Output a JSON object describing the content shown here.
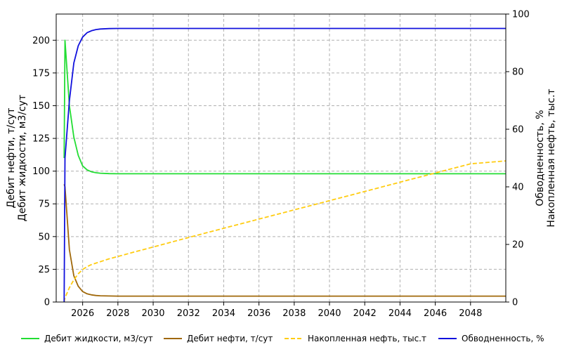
{
  "chart_data": {
    "type": "line",
    "title": "",
    "x": [
      2024.95,
      2025.0,
      2025.25,
      2025.5,
      2025.75,
      2026.0,
      2026.25,
      2026.5,
      2026.75,
      2027.0,
      2027.5,
      2028.0,
      2029.0,
      2030.0,
      2032.0,
      2034.0,
      2036.0,
      2038.0,
      2040.0,
      2042.0,
      2044.0,
      2046.0,
      2048.0,
      2050.0
    ],
    "xlim": [
      2024.5,
      2050.0
    ],
    "xticks": [
      "2026",
      "2028",
      "2030",
      "2032",
      "2034",
      "2036",
      "2038",
      "2040",
      "2042",
      "2044",
      "2046",
      "2048"
    ],
    "xtick_values": [
      2026,
      2028,
      2030,
      2032,
      2034,
      2036,
      2038,
      2040,
      2042,
      2044,
      2046,
      2048
    ],
    "ylabel_left": "Дебит нефти, т/сут\nДебит жидкости, м3/сут",
    "ylabel_right": "Обводненность, %\nНакопленная нефть, тыс.т",
    "ylim_left": [
      0,
      220
    ],
    "yticks_left": [
      0,
      25,
      50,
      75,
      100,
      125,
      150,
      175,
      200
    ],
    "ylim_right": [
      0,
      100
    ],
    "yticks_right": [
      0,
      20,
      40,
      60,
      80,
      100
    ],
    "grid": true,
    "legend_position": "bottom",
    "series": [
      {
        "name": "Дебит жидкости, м3/сут",
        "axis": "left",
        "color": "#22dd33",
        "dash": "solid",
        "values": [
          110,
          200,
          150,
          126,
          112,
          104,
          101,
          99.5,
          98.8,
          98.4,
          98.1,
          98.0,
          98.0,
          98.0,
          98.0,
          98.0,
          98.0,
          98.0,
          98.0,
          98.0,
          98.0,
          98.0,
          98.0,
          98.0
        ]
      },
      {
        "name": "Дебит нефти, т/сут",
        "axis": "left",
        "color": "#a0680a",
        "dash": "solid",
        "values": [
          90,
          88,
          40,
          20,
          12,
          8,
          6.3,
          5.5,
          5.0,
          4.8,
          4.6,
          4.5,
          4.5,
          4.5,
          4.5,
          4.5,
          4.5,
          4.5,
          4.5,
          4.5,
          4.5,
          4.5,
          4.5,
          4.5
        ]
      },
      {
        "name": "Накопленная нефть, тыс.т",
        "axis": "right",
        "color": "#ffcc11",
        "dash": "dashed",
        "values": [
          0,
          1.5,
          5,
          7.7,
          9.8,
          11.3,
          12.3,
          13.0,
          13.5,
          14.0,
          15.0,
          15.8,
          17.5,
          19.1,
          22.4,
          25.6,
          28.8,
          32.0,
          35.2,
          38.4,
          41.6,
          44.8,
          48.0,
          49.0
        ]
      },
      {
        "name": "Обводненность, %",
        "axis": "right",
        "color": "#1010dd",
        "dash": "solid",
        "values": [
          0,
          50,
          70,
          83,
          89,
          92,
          93.5,
          94.2,
          94.6,
          94.8,
          94.95,
          95.0,
          95.0,
          95.0,
          95.0,
          95.0,
          95.0,
          95.0,
          95.0,
          95.0,
          95.0,
          95.0,
          95.0,
          95.0
        ]
      }
    ]
  }
}
